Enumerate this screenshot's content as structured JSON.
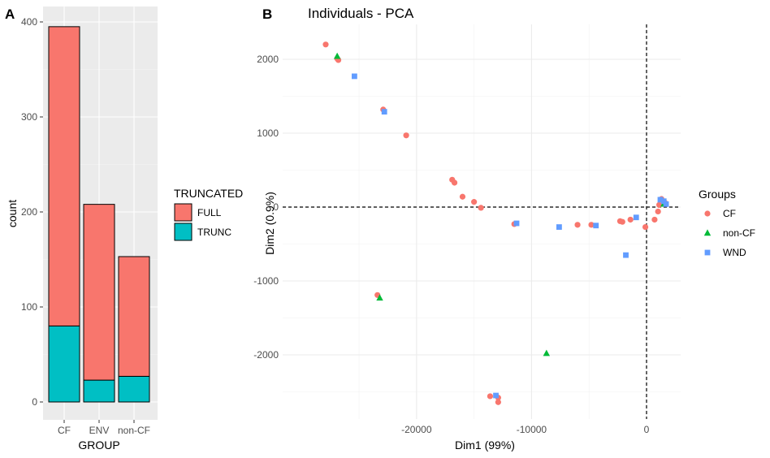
{
  "chart_data": [
    {
      "type": "bar",
      "panel_label": "A",
      "xlabel": "GROUP",
      "ylabel": "count",
      "categories": [
        "CF",
        "ENV",
        "non-CF"
      ],
      "stacked": true,
      "series": [
        {
          "name": "FULL",
          "values": [
            315,
            185,
            126
          ],
          "color": "#F8766D"
        },
        {
          "name": "TRUNC",
          "values": [
            80,
            23,
            27
          ],
          "color": "#00BFC4"
        }
      ],
      "ylim": [
        0,
        415
      ],
      "y_ticks": [
        0,
        100,
        200,
        300,
        400
      ],
      "legend": {
        "title": "TRUNCATED",
        "position": "right"
      },
      "grid": true,
      "background": "#EBEBEB"
    },
    {
      "type": "scatter",
      "panel_label": "B",
      "title": "Individuals - PCA",
      "xlabel": "Dim1 (99%)",
      "ylabel": "Dim2 (0.9%)",
      "xlim": [
        -28800,
        3000
      ],
      "ylim": [
        -2700,
        2250
      ],
      "x_ticks": [
        -20000,
        -10000,
        0
      ],
      "y_ticks": [
        -2000,
        -1000,
        0,
        1000,
        2000
      ],
      "reference_lines": {
        "x": 0,
        "y": 0,
        "style": "dashed"
      },
      "legend": {
        "title": "Groups",
        "position": "right"
      },
      "grid": true,
      "background": "#FFFFFF",
      "series": [
        {
          "name": "CF",
          "color": "#F8766D",
          "shape": "circle",
          "points": [
            [
              -27900,
              2200
            ],
            [
              -26900,
              2010
            ],
            [
              -26800,
              1990
            ],
            [
              -22900,
              1320
            ],
            [
              -20900,
              970
            ],
            [
              -16900,
              370
            ],
            [
              -16700,
              330
            ],
            [
              -16000,
              140
            ],
            [
              -15000,
              70
            ],
            [
              -14400,
              -10
            ],
            [
              -11500,
              -230
            ],
            [
              -6000,
              -240
            ],
            [
              -4800,
              -240
            ],
            [
              -2300,
              -190
            ],
            [
              -2100,
              -200
            ],
            [
              -1400,
              -170
            ],
            [
              -100,
              -270
            ],
            [
              700,
              -170
            ],
            [
              1000,
              -60
            ],
            [
              1100,
              30
            ],
            [
              1300,
              110
            ],
            [
              1600,
              60
            ],
            [
              -23400,
              -1190
            ],
            [
              -13600,
              -2560
            ],
            [
              -12900,
              -2580
            ],
            [
              -12900,
              -2640
            ]
          ]
        },
        {
          "name": "non-CF",
          "color": "#00BA38",
          "shape": "triangle",
          "points": [
            [
              -26900,
              2040
            ],
            [
              -23200,
              -1230
            ],
            [
              -8700,
              -1980
            ],
            [
              1500,
              40
            ]
          ]
        },
        {
          "name": "WND",
          "color": "#619CFF",
          "shape": "square",
          "points": [
            [
              -25400,
              1770
            ],
            [
              -22800,
              1290
            ],
            [
              -11300,
              -220
            ],
            [
              -7600,
              -270
            ],
            [
              -4400,
              -250
            ],
            [
              -900,
              -140
            ],
            [
              -1800,
              -650
            ],
            [
              1200,
              100
            ],
            [
              1500,
              80
            ],
            [
              1700,
              40
            ],
            [
              -13100,
              -2550
            ]
          ]
        }
      ]
    }
  ]
}
